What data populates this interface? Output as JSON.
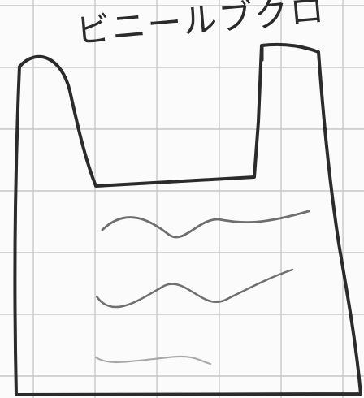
{
  "sketch": {
    "label": "ビニールブクロ"
  },
  "colors": {
    "paper": "#fbfbfb",
    "grid": "#c8c8c8",
    "ink": "#2b2b2b",
    "pencil": "#6f6f6f",
    "pencil_light": "#a8a8a8"
  }
}
